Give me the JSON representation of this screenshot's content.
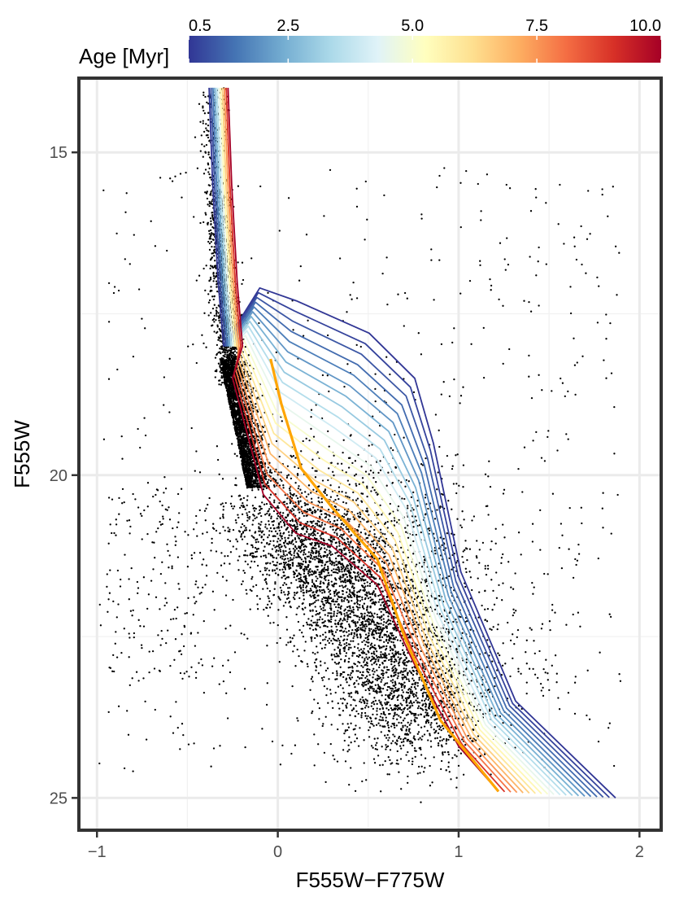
{
  "chart_data": {
    "type": "scatter",
    "xlabel": "F555W−F775W",
    "ylabel": "F555W",
    "xlim": [
      -1.1,
      2.12
    ],
    "ylim": [
      25.5,
      13.85
    ],
    "y_reversed": true,
    "grid": true,
    "x_ticks": [
      -1,
      0,
      1,
      2
    ],
    "x_tick_labels": [
      "−1",
      "0",
      "1",
      "2"
    ],
    "y_ticks": [
      15,
      20,
      25
    ],
    "y_tick_labels": [
      "15",
      "20",
      "25"
    ],
    "colorbar": {
      "title": "Age [Myr]",
      "placement": "top",
      "range": [
        0.5,
        10.0
      ],
      "ticks": [
        0.5,
        2.5,
        5.0,
        7.5,
        10.0
      ],
      "tick_labels": [
        "0.5",
        "2.5",
        "5.0",
        "7.5",
        "10.0"
      ],
      "palette": [
        "#313695",
        "#4575b4",
        "#74add1",
        "#abd9e9",
        "#e0f3f8",
        "#ffffbf",
        "#fee090",
        "#fdae61",
        "#f46d43",
        "#d73027",
        "#a50026"
      ]
    },
    "scatter_color": "#000000",
    "highlight_isochrone_color": "#ffa500",
    "isochrones": {
      "ages_myr": [
        0.5,
        0.7,
        1.0,
        1.3,
        1.6,
        2.0,
        2.5,
        3.0,
        3.5,
        4.0,
        4.5,
        5.0,
        5.5,
        6.0,
        6.5,
        7.0,
        7.5,
        8.0,
        9.0,
        10.0
      ],
      "upper_ms_top": [
        [
          -0.38,
          14.0
        ],
        [
          -0.36,
          15.5
        ],
        [
          -0.33,
          17.0
        ],
        [
          -0.3,
          18.0
        ]
      ],
      "pms_turn_on_young": [
        [
          -0.1,
          17.1
        ],
        [
          0.1,
          17.3
        ],
        [
          0.5,
          17.8
        ],
        [
          0.75,
          18.5
        ],
        [
          0.85,
          19.5
        ],
        [
          1.0,
          21.5
        ],
        [
          1.3,
          23.5
        ],
        [
          1.85,
          25.0
        ]
      ],
      "pms_turn_on_old": [
        [
          -0.25,
          18.5
        ],
        [
          -0.08,
          20.3
        ],
        [
          0.1,
          20.9
        ],
        [
          0.3,
          21.1
        ],
        [
          0.55,
          21.7
        ],
        [
          0.75,
          22.9
        ],
        [
          1.0,
          24.2
        ],
        [
          1.22,
          24.9
        ]
      ],
      "highlight": [
        [
          -0.04,
          18.2
        ],
        [
          0.02,
          18.9
        ],
        [
          0.13,
          19.9
        ],
        [
          0.3,
          20.5
        ],
        [
          0.55,
          21.3
        ],
        [
          0.7,
          22.5
        ],
        [
          0.9,
          23.8
        ],
        [
          1.22,
          24.9
        ]
      ]
    }
  }
}
